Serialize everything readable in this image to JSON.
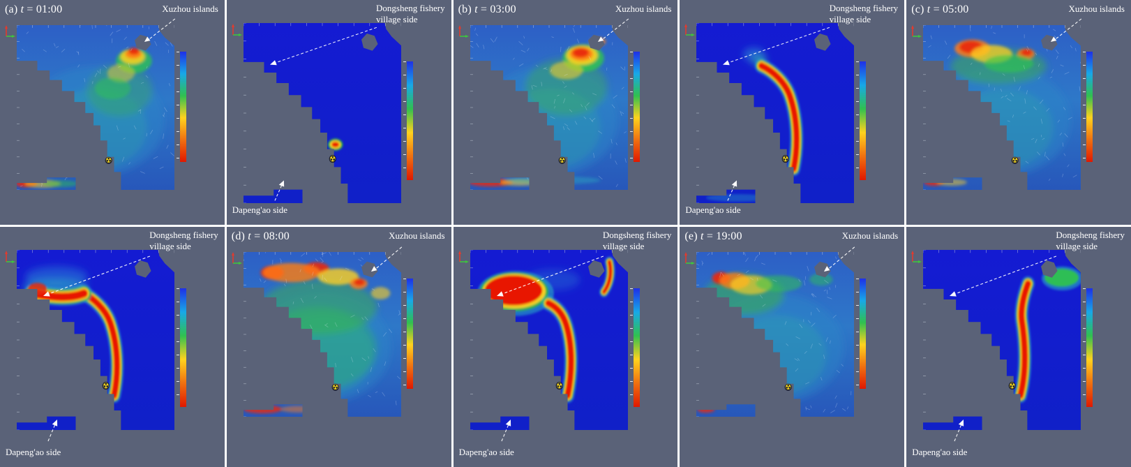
{
  "labels": {
    "xuzhou": "Xuzhou islands",
    "dongsheng_line1": "Dongsheng fishery",
    "dongsheng_line2": "village side",
    "dapeng": "Dapeng'ao side"
  },
  "panels": [
    {
      "prefix": "(a)",
      "var": "t",
      "eq": "=",
      "time": "01:00"
    },
    {
      "prefix": "(b)",
      "var": "t",
      "eq": "=",
      "time": "03:00"
    },
    {
      "prefix": "(c)",
      "var": "t",
      "eq": "=",
      "time": "05:00"
    },
    {
      "prefix": "(d)",
      "var": "t",
      "eq": "=",
      "time": "08:00"
    },
    {
      "prefix": "(e)",
      "var": "t",
      "eq": "=",
      "time": "19:00"
    }
  ],
  "colors": {
    "panel_background": "#5a6278",
    "sea_blue": "#141bd2",
    "plume_red": "#e81800",
    "annotation_white": "#ffffff"
  },
  "chart_data": {
    "type": "heatmap",
    "layout": "2 rows x 5 columns of simulation maps; top row = tidal current velocity fields with vector streaks, bottom row = released plume concentration maps; each map has a vertical rainbow colorbar (blue at top through green and yellow to red at bottom) on its right and a small red/green orientation-axes glyph at its top left",
    "times": [
      "01:00",
      "03:00",
      "05:00",
      "08:00",
      "19:00"
    ],
    "annotations": [
      "Xuzhou islands",
      "Dongsheng fishery village side",
      "Dapeng'ao side"
    ],
    "release_marker": "yellow radioactive trefoil symbol at the release location on every map",
    "panels": [
      {
        "label": "(a)",
        "time": "01:00",
        "current_field": "narrow high-speed jet (red/orange) in the channel beside Xuzhou islands; small red patch in the southwest bay; remaining water mostly blue-green",
        "plume": "small concentrated red patch at the release point near the trefoil marker"
      },
      {
        "label": "(b)",
        "time": "03:00",
        "current_field": "intense red jet just north of the island channel; red band along the southwest bay; turquoise banding in the south",
        "plume": "narrow red ribbon with yellow-green fringe stretching north along the coast toward Xuzhou islands"
      },
      {
        "label": "(c)",
        "time": "05:00",
        "current_field": "strong red patch in the northwest open water; orange spot at the island channel persists",
        "plume": "coastal ribbon plus a red band spreading west along the northern shore toward Dongsheng fishery village side, with diffuse cyan halo"
      },
      {
        "label": "(d)",
        "time": "08:00",
        "current_field": "several strong red/orange patches across the whole northern boundary; field generally greener (faster) everywhere",
        "plume": "large red patch filling the northwest corner plus the coastal ribbon; thin red streak east of the islands"
      },
      {
        "label": "(e)",
        "time": "19:00",
        "current_field": "red/orange patch in the northwest with green wash; currents weaker (blue) elsewhere",
        "plume": "ribbon shifted east toward the islands; green patch northeast of the islands; northwest water cleared back to blue"
      }
    ]
  }
}
